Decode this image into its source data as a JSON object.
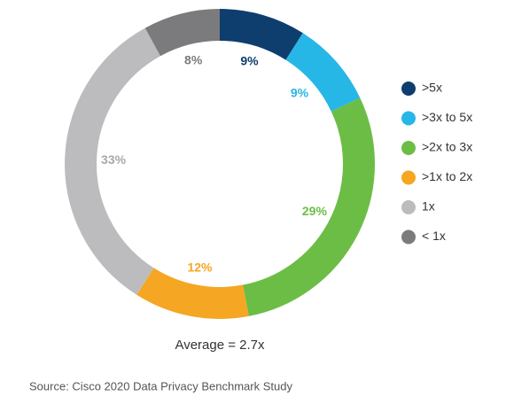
{
  "chart_data": {
    "type": "donut",
    "categories": [
      ">5x",
      ">3x to 5x",
      ">2x to 3x",
      ">1x to 2x",
      "1x",
      "< 1x"
    ],
    "values": [
      9,
      9,
      29,
      12,
      33,
      8
    ],
    "value_labels": [
      "9%",
      "9%",
      "29%",
      "12%",
      "33%",
      "8%"
    ],
    "colors": [
      "#0d3e6e",
      "#27b7e6",
      "#6cbd45",
      "#f5a623",
      "#bcbcbe",
      "#7b7b7d"
    ],
    "annotation": "Average = 2.7x",
    "source": "Source:  Cisco 2020 Data Privacy Benchmark Study"
  }
}
